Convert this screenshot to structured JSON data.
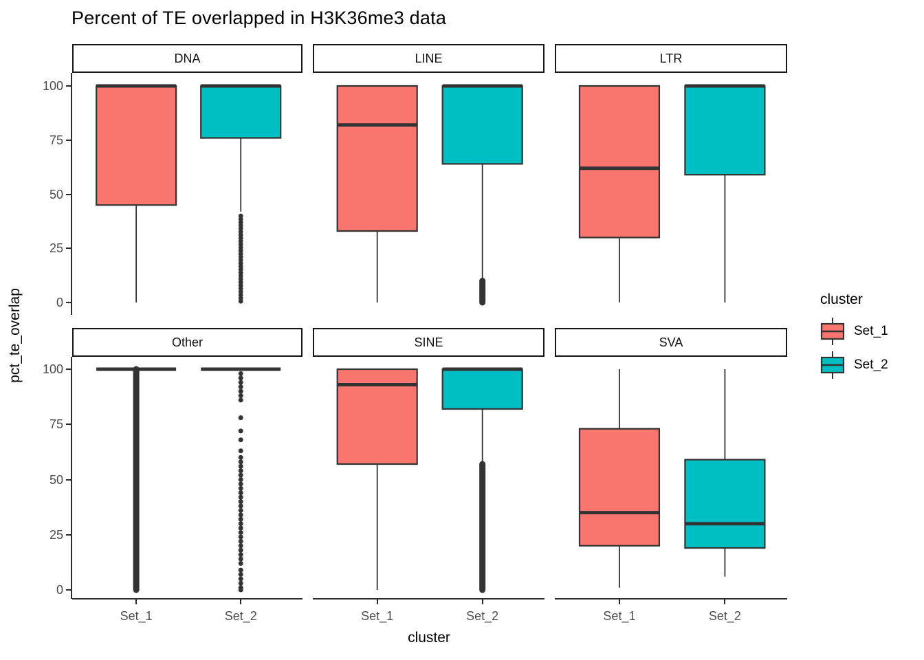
{
  "title": "Percent of TE overlapped in H3K36me3 data",
  "legend": {
    "title": "cluster",
    "entries": [
      {
        "label": "Set_1",
        "color": "#F8766D"
      },
      {
        "label": "Set_2",
        "color": "#00BFC4"
      }
    ]
  },
  "colors": {
    "set_1_fill": "#F8766D",
    "set_2_fill": "#00BFC4",
    "box_stroke": "#333333",
    "axis_line": "#2a2a2a",
    "axis_text": "#4d4d4d",
    "strip_border": "#151515"
  },
  "chart_data": {
    "type": "boxplot",
    "title": "Percent of TE overlapped in H3K36me3 data",
    "xlabel": "cluster",
    "ylabel": "pct_te_overlap",
    "ylim": [
      0,
      100
    ],
    "y_ticks": [
      0,
      25,
      50,
      75,
      100
    ],
    "x_categories": [
      "Set_1",
      "Set_2"
    ],
    "grid": false,
    "legend_position": "right",
    "facets": [
      {
        "name": "DNA",
        "boxes": [
          {
            "group": "Set_1",
            "whisker_low": 0,
            "q1": 45,
            "median": 100,
            "q3": 100,
            "whisker_high": 100,
            "outliers": null
          },
          {
            "group": "Set_2",
            "whisker_low": 42,
            "q1": 76,
            "median": 100,
            "q3": 100,
            "whisker_high": 100,
            "outliers": {
              "style": "dense-dots",
              "min": 0,
              "max": 40
            }
          }
        ]
      },
      {
        "name": "LINE",
        "boxes": [
          {
            "group": "Set_1",
            "whisker_low": 0,
            "q1": 33,
            "median": 82,
            "q3": 100,
            "whisker_high": 100,
            "outliers": null
          },
          {
            "group": "Set_2",
            "whisker_low": 11,
            "q1": 64,
            "median": 100,
            "q3": 100,
            "whisker_high": 100,
            "outliers": {
              "style": "solid",
              "min": 0,
              "max": 10
            }
          }
        ]
      },
      {
        "name": "LTR",
        "boxes": [
          {
            "group": "Set_1",
            "whisker_low": 0,
            "q1": 30,
            "median": 62,
            "q3": 100,
            "whisker_high": 100,
            "outliers": null
          },
          {
            "group": "Set_2",
            "whisker_low": 0,
            "q1": 59,
            "median": 100,
            "q3": 100,
            "whisker_high": 100,
            "outliers": null
          }
        ]
      },
      {
        "name": "Other",
        "boxes": [
          {
            "group": "Set_1",
            "whisker_low": 100,
            "q1": 100,
            "median": 100,
            "q3": 100,
            "whisker_high": 100,
            "outliers": {
              "style": "solid",
              "min": 0,
              "max": 100
            }
          },
          {
            "group": "Set_2",
            "whisker_low": 100,
            "q1": 100,
            "median": 100,
            "q3": 100,
            "whisker_high": 100,
            "outliers": {
              "style": "sparse-dots",
              "min": 0,
              "max": 98,
              "values": [
                98,
                96,
                94,
                92,
                90,
                88,
                86,
                78,
                72,
                68,
                63,
                60,
                58,
                56,
                54,
                52,
                50,
                48,
                46,
                44,
                42,
                40,
                38,
                36,
                34,
                32,
                30,
                28,
                26,
                24,
                22,
                20,
                18,
                16,
                14,
                12,
                9,
                7,
                5,
                3,
                1,
                0
              ]
            }
          }
        ]
      },
      {
        "name": "SINE",
        "boxes": [
          {
            "group": "Set_1",
            "whisker_low": 0,
            "q1": 57,
            "median": 93,
            "q3": 100,
            "whisker_high": 100,
            "outliers": null
          },
          {
            "group": "Set_2",
            "whisker_low": 58,
            "q1": 82,
            "median": 100,
            "q3": 100,
            "whisker_high": 100,
            "outliers": {
              "style": "solid",
              "min": 0,
              "max": 57
            }
          }
        ]
      },
      {
        "name": "SVA",
        "boxes": [
          {
            "group": "Set_1",
            "whisker_low": 1,
            "q1": 20,
            "median": 35,
            "q3": 73,
            "whisker_high": 100,
            "outliers": null
          },
          {
            "group": "Set_2",
            "whisker_low": 6,
            "q1": 19,
            "median": 30,
            "q3": 59,
            "whisker_high": 100,
            "outliers": null
          }
        ]
      }
    ]
  }
}
